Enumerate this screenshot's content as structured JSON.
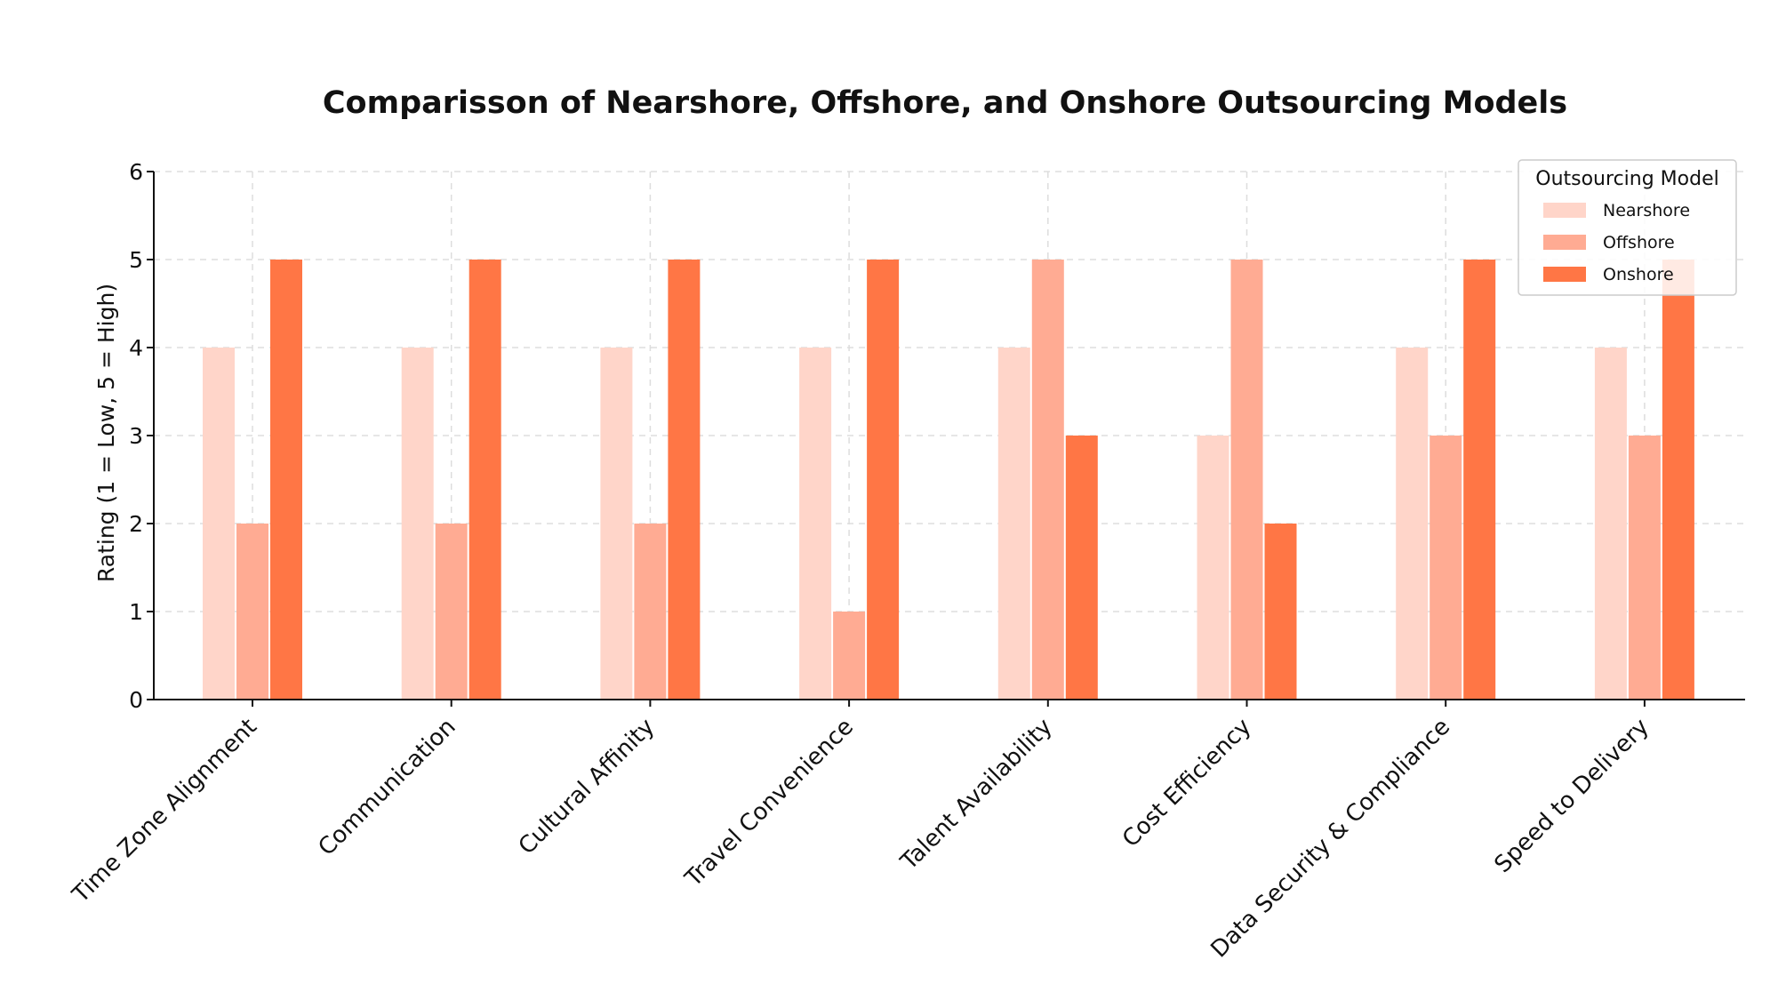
{
  "chart_data": {
    "type": "bar",
    "title": "Comparisson of Nearshore, Offshore, and Onshore Outsourcing Models",
    "xlabel": "",
    "ylabel": "Rating (1 = Low, 5 = High)",
    "ylim": [
      0,
      6
    ],
    "yticks": [
      "0",
      "1",
      "2",
      "3",
      "4",
      "5",
      "6"
    ],
    "grid": true,
    "legend_position": "top-right",
    "legend_title": "Outsourcing Model",
    "categories": [
      "Time Zone Alignment",
      "Communication",
      "Cultural Affinity",
      "Travel Convenience",
      "Talent Availability",
      "Cost Efficiency",
      "Data Security & Compliance",
      "Speed to Delivery"
    ],
    "series": [
      {
        "name": "Nearshore",
        "color": "#ffd5c9",
        "values": [
          4,
          4,
          4,
          4,
          4,
          3,
          4,
          4
        ]
      },
      {
        "name": "Offshore",
        "color": "#ffab93",
        "values": [
          2,
          2,
          2,
          1,
          5,
          5,
          3,
          3
        ]
      },
      {
        "name": "Onshore",
        "color": "#ff7645",
        "values": [
          5,
          5,
          5,
          5,
          3,
          2,
          5,
          5
        ]
      }
    ]
  }
}
